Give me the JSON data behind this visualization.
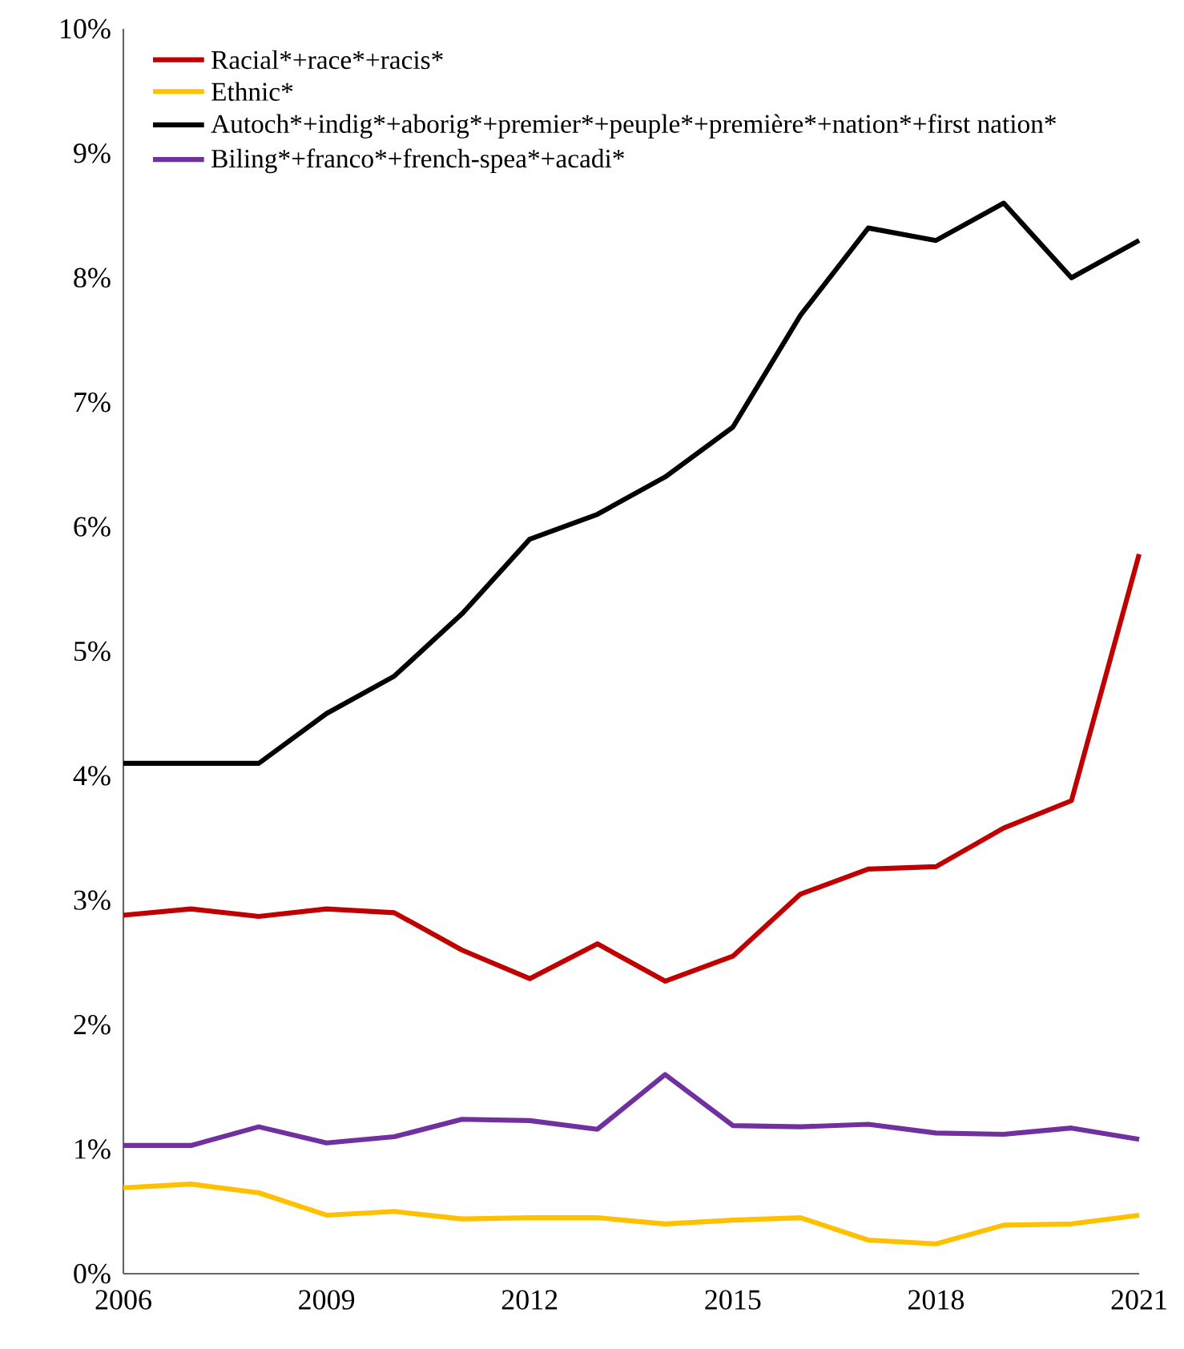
{
  "chart_data": {
    "type": "line",
    "x": [
      2006,
      2007,
      2008,
      2009,
      2010,
      2011,
      2012,
      2013,
      2014,
      2015,
      2016,
      2017,
      2018,
      2019,
      2020,
      2021
    ],
    "series": [
      {
        "name": "Racial*+race*+racis*",
        "color": "#c00000",
        "values": [
          2.88,
          2.93,
          2.87,
          2.93,
          2.9,
          2.6,
          2.37,
          2.65,
          2.35,
          2.55,
          3.05,
          3.25,
          3.27,
          3.58,
          3.8,
          5.78
        ]
      },
      {
        "name": "Ethnic*",
        "color": "#ffc000",
        "values": [
          0.69,
          0.72,
          0.65,
          0.47,
          0.5,
          0.44,
          0.45,
          0.45,
          0.4,
          0.43,
          0.45,
          0.27,
          0.24,
          0.39,
          0.4,
          0.47
        ]
      },
      {
        "name": "Autoch*+indig*+aborig*+premier*+peuple*+première*+nation*+first nation*",
        "color": "#000000",
        "values": [
          4.1,
          4.1,
          4.1,
          4.5,
          4.8,
          5.3,
          5.9,
          6.1,
          6.4,
          6.8,
          7.7,
          8.4,
          8.3,
          8.6,
          8.0,
          8.3
        ]
      },
      {
        "name": "Biling*+franco*+french-spea*+acadi*",
        "color": "#7030a0",
        "values": [
          1.03,
          1.03,
          1.18,
          1.05,
          1.1,
          1.24,
          1.23,
          1.16,
          1.6,
          1.19,
          1.18,
          1.2,
          1.13,
          1.12,
          1.17,
          1.08
        ]
      }
    ],
    "xlim": [
      2006,
      2021
    ],
    "xticks": [
      2006,
      2009,
      2012,
      2015,
      2018,
      2021
    ],
    "ylim": [
      0,
      10
    ],
    "yticks": [
      {
        "value": 0,
        "label": "0%"
      },
      {
        "value": 1,
        "label": "1%"
      },
      {
        "value": 2,
        "label": "2%"
      },
      {
        "value": 3,
        "label": "3%"
      },
      {
        "value": 4,
        "label": "4%"
      },
      {
        "value": 5,
        "label": "5%"
      },
      {
        "value": 6,
        "label": "6%"
      },
      {
        "value": 7,
        "label": "7%"
      },
      {
        "value": 8,
        "label": "8%"
      },
      {
        "value": 9,
        "label": "9%"
      },
      {
        "value": 10,
        "label": "10%"
      }
    ],
    "grid": false,
    "legend": "top left",
    "marker": "none",
    "line_style": "solid"
  }
}
